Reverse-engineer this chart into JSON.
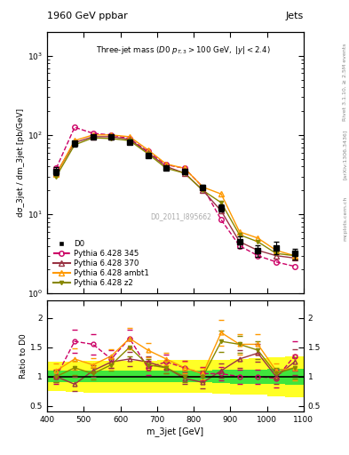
{
  "title_top": "1960 GeV ppbar",
  "title_top_right": "Jets",
  "annotation": "Three-jet mass",
  "annotation2": "(D0 p_{T,3} > 100 GeV, |y| < 2.4)",
  "watermark": "D0_2011_I895662",
  "rivet_label": "Rivet 3.1.10, ≥ 2.5M events",
  "arxiv_label": "[arXiv:1306.3436]",
  "mcplots_label": "mcplots.cern.ch",
  "xlabel": "m_3jet [GeV]",
  "ylabel": "dσ_3jet / dm_3jet [pb/GeV]",
  "ylabel_ratio": "Ratio to D0",
  "xlim": [
    400,
    1100
  ],
  "ylim_main": [
    1.0,
    2000
  ],
  "ylim_ratio": [
    0.4,
    2.3
  ],
  "x_d0": [
    425,
    475,
    525,
    575,
    625,
    675,
    725,
    775,
    825,
    875,
    925,
    975,
    1025,
    1075
  ],
  "y_d0": [
    35,
    78,
    95,
    95,
    82,
    55,
    38,
    35,
    22,
    12,
    4.5,
    3.5,
    3.8,
    3.2
  ],
  "yerr_d0": [
    4,
    6,
    5,
    5,
    4,
    3,
    2,
    2,
    1.5,
    1.2,
    0.7,
    0.6,
    0.7,
    0.5
  ],
  "x_345": [
    425,
    475,
    525,
    575,
    625,
    675,
    725,
    775,
    825,
    875,
    925,
    975,
    1025,
    1075
  ],
  "y_345": [
    38,
    125,
    105,
    100,
    90,
    62,
    42,
    38,
    22,
    8.5,
    4.0,
    3.0,
    2.5,
    2.2
  ],
  "x_370": [
    425,
    475,
    525,
    575,
    625,
    675,
    725,
    775,
    825,
    875,
    925,
    975,
    1025,
    1075
  ],
  "y_370": [
    33,
    80,
    95,
    95,
    88,
    60,
    40,
    33,
    20,
    11,
    4.5,
    3.5,
    3.0,
    2.8
  ],
  "x_ambt1": [
    425,
    475,
    525,
    575,
    625,
    675,
    725,
    775,
    825,
    875,
    925,
    975,
    1025,
    1075
  ],
  "y_ambt1": [
    32,
    85,
    100,
    100,
    95,
    65,
    43,
    38,
    22,
    18,
    6.0,
    5.0,
    3.5,
    3.0
  ],
  "x_z2": [
    425,
    475,
    525,
    575,
    625,
    675,
    725,
    775,
    825,
    875,
    925,
    975,
    1025,
    1075
  ],
  "y_z2": [
    30,
    75,
    92,
    90,
    85,
    58,
    38,
    33,
    20,
    14,
    5.5,
    4.5,
    3.2,
    3.0
  ],
  "ratio_x": [
    425,
    475,
    525,
    575,
    625,
    675,
    725,
    775,
    825,
    875,
    925,
    975,
    1025,
    1075
  ],
  "ratio_345": [
    1.0,
    1.6,
    1.55,
    1.3,
    1.65,
    1.15,
    1.25,
    1.15,
    1.05,
    1.05,
    1.0,
    1.0,
    0.97,
    1.35
  ],
  "ratio_345_err": [
    0.12,
    0.2,
    0.18,
    0.15,
    0.15,
    0.12,
    0.12,
    0.12,
    0.12,
    0.12,
    0.12,
    0.12,
    0.15,
    0.25
  ],
  "ratio_370": [
    1.0,
    0.87,
    1.1,
    1.25,
    1.3,
    1.25,
    1.15,
    0.97,
    0.9,
    1.1,
    1.3,
    1.4,
    1.0,
    1.25
  ],
  "ratio_370_err": [
    0.1,
    0.12,
    0.1,
    0.1,
    0.12,
    0.1,
    0.1,
    0.1,
    0.1,
    0.12,
    0.15,
    0.15,
    0.12,
    0.22
  ],
  "ratio_ambt1": [
    1.1,
    1.3,
    1.2,
    1.35,
    1.65,
    1.45,
    1.3,
    1.15,
    1.05,
    1.75,
    1.55,
    1.55,
    1.1,
    1.15
  ],
  "ratio_ambt1_err": [
    0.12,
    0.18,
    0.12,
    0.12,
    0.18,
    0.12,
    0.1,
    0.1,
    0.1,
    0.22,
    0.18,
    0.18,
    0.12,
    0.22
  ],
  "ratio_z2": [
    1.0,
    1.15,
    1.05,
    1.2,
    1.5,
    1.2,
    1.15,
    1.0,
    1.0,
    1.6,
    1.55,
    1.45,
    1.05,
    1.15
  ],
  "ratio_z2_err": [
    0.1,
    0.12,
    0.1,
    0.1,
    0.15,
    0.1,
    0.1,
    0.1,
    0.1,
    0.18,
    0.15,
    0.15,
    0.1,
    0.18
  ],
  "color_d0": "#000000",
  "color_345": "#cc0066",
  "color_370": "#993344",
  "color_ambt1": "#ff9900",
  "color_z2": "#888800",
  "band_x_edges": [
    400,
    450,
    500,
    550,
    600,
    650,
    700,
    750,
    800,
    850,
    900,
    950,
    1000,
    1050,
    1100
  ],
  "yellow_low": [
    0.75,
    0.74,
    0.73,
    0.73,
    0.73,
    0.73,
    0.72,
    0.72,
    0.72,
    0.71,
    0.7,
    0.69,
    0.67,
    0.65
  ],
  "yellow_high": [
    1.25,
    1.26,
    1.27,
    1.27,
    1.27,
    1.27,
    1.28,
    1.28,
    1.28,
    1.29,
    1.3,
    1.31,
    1.33,
    1.35
  ],
  "green_low": [
    0.9,
    0.9,
    0.9,
    0.9,
    0.9,
    0.9,
    0.9,
    0.9,
    0.9,
    0.89,
    0.88,
    0.88,
    0.87,
    0.86
  ],
  "green_high": [
    1.1,
    1.1,
    1.1,
    1.1,
    1.1,
    1.1,
    1.1,
    1.1,
    1.1,
    1.11,
    1.12,
    1.12,
    1.13,
    1.14
  ]
}
